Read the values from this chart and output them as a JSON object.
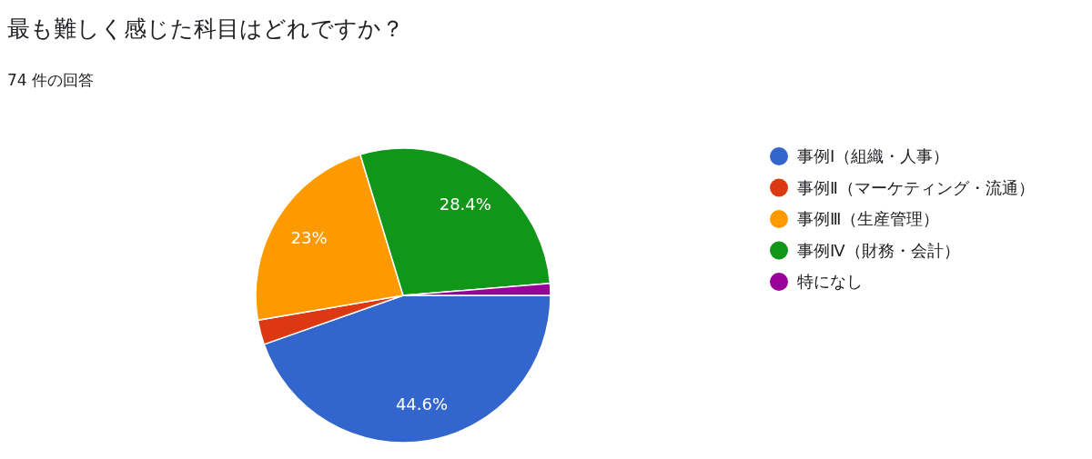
{
  "chart_data": {
    "type": "pie",
    "title": "最も難しく感じた科目はどれですか？",
    "subtitle": "74 件の回答",
    "categories": [
      "事例Ⅰ（組織・人事）",
      "事例Ⅱ（マーケティング・流通）",
      "事例Ⅲ（生産管理）",
      "事例Ⅳ（財務・会計）",
      "特になし"
    ],
    "values": [
      44.6,
      2.7,
      23,
      28.4,
      1.3
    ],
    "colors": [
      "#3366cc",
      "#dc3912",
      "#ff9900",
      "#109618",
      "#990099"
    ],
    "value_labels": [
      "44.6%",
      null,
      "23%",
      "28.4%",
      null
    ],
    "legend": "right"
  }
}
